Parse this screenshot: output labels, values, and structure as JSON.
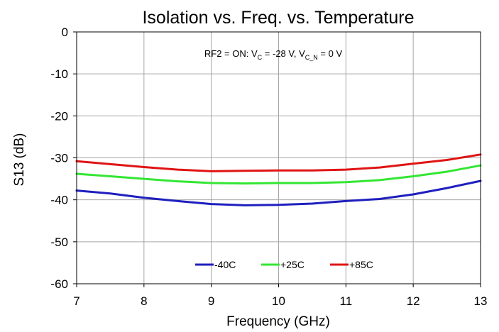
{
  "chart_data": {
    "type": "line",
    "title": "Isolation vs. Freq. vs. Temperature",
    "xlabel": "Frequency (GHz)",
    "ylabel": "S13 (dB)",
    "annotation": {
      "prefix": "RF2 = ON: V",
      "sub1": "C",
      "mid": " = -28 V, V",
      "sub2": "C_N",
      "suffix": " = 0 V"
    },
    "xlim": [
      7,
      13
    ],
    "ylim": [
      -60,
      0
    ],
    "xticks": [
      7,
      8,
      9,
      10,
      11,
      12,
      13
    ],
    "yticks": [
      0,
      -10,
      -20,
      -30,
      -40,
      -50,
      -60
    ],
    "grid": true,
    "legend_position": "bottom-center",
    "x": [
      7.0,
      7.5,
      8.0,
      8.5,
      9.0,
      9.5,
      10.0,
      10.5,
      11.0,
      11.5,
      12.0,
      12.5,
      13.0
    ],
    "series": [
      {
        "name": "-40C",
        "color": "#1f1fbf",
        "values": [
          -37.8,
          -38.5,
          -39.5,
          -40.3,
          -41.0,
          -41.3,
          -41.2,
          -40.9,
          -40.3,
          -39.8,
          -38.7,
          -37.2,
          -35.5
        ]
      },
      {
        "name": "+25C",
        "color": "#33e633",
        "values": [
          -33.8,
          -34.4,
          -35.0,
          -35.6,
          -36.0,
          -36.1,
          -36.0,
          -36.0,
          -35.8,
          -35.3,
          -34.4,
          -33.3,
          -31.8
        ]
      },
      {
        "name": "+85C",
        "color": "#e01414",
        "values": [
          -30.8,
          -31.5,
          -32.2,
          -32.8,
          -33.2,
          -33.1,
          -33.0,
          -33.0,
          -32.8,
          -32.3,
          -31.4,
          -30.5,
          -29.2
        ]
      }
    ]
  }
}
